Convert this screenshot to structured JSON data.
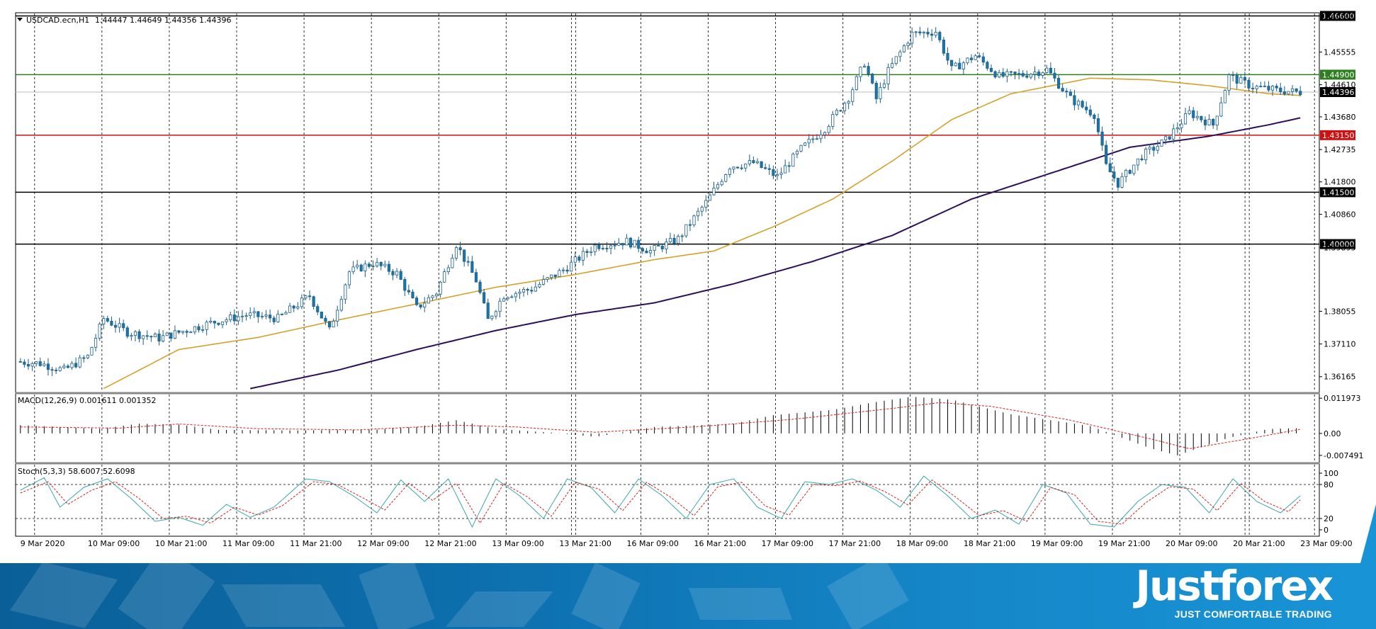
{
  "header": {
    "symbol": "USDCAD.ecn,H1",
    "ohlc": "1.44447 1.44649 1.44356 1.44396",
    "macd_title": "MACD(12,26,9) 0.001611 0.001352",
    "stoch_title": "Stoch(5,3,3) 58.6007 52.6098"
  },
  "brand": {
    "name": "Justforex",
    "tagline": "JUST COMFORTABLE TRADING"
  },
  "colors": {
    "up_candle": "#ffffff",
    "down_candle": "#1a75ab",
    "ma_fast": "#d4a22a",
    "ma_slow": "#2e0f5a",
    "hline_green": "#2e7d1f",
    "hline_red": "#d01010",
    "hline_black": "#000000",
    "macd_signal": "#d62020",
    "stoch_main": "#3aa6a6",
    "stoch_signal": "#d62020"
  },
  "chart_data": [
    {
      "type": "candlestick",
      "title": "USDCAD.ecn,H1",
      "ylim": [
        1.3575,
        1.4665
      ],
      "price_ticks": [
        "1.46600",
        "1.45555",
        "1.44610",
        "1.43680",
        "1.42735",
        "1.41800",
        "1.40860",
        "1.39895",
        "1.38055",
        "1.37110",
        "1.36165"
      ],
      "x_labels": [
        "9 Mar 2020",
        "10 Mar 09:00",
        "10 Mar 21:00",
        "11 Mar 09:00",
        "11 Mar 21:00",
        "12 Mar 09:00",
        "12 Mar 21:00",
        "13 Mar 09:00",
        "13 Mar 21:00",
        "16 Mar 09:00",
        "16 Mar 21:00",
        "17 Mar 09:00",
        "17 Mar 21:00",
        "18 Mar 09:00",
        "18 Mar 21:00",
        "19 Mar 09:00",
        "19 Mar 21:00",
        "20 Mar 09:00",
        "20 Mar 21:00",
        "23 Mar 09:00"
      ],
      "horizontal_levels": [
        {
          "value": 1.466,
          "label": "1.46600",
          "color": "black"
        },
        {
          "value": 1.449,
          "label": "1.44900",
          "color": "green"
        },
        {
          "value": 1.44396,
          "label": "1.44396",
          "color": "black"
        },
        {
          "value": 1.4315,
          "label": "1.43150",
          "color": "red"
        },
        {
          "value": 1.415,
          "label": "1.41500",
          "color": "black"
        },
        {
          "value": 1.4,
          "label": "1.40000",
          "color": "black"
        }
      ],
      "price_path": [
        [
          0,
          1.366
        ],
        [
          6,
          1.3655
        ],
        [
          12,
          1.3635
        ],
        [
          18,
          1.3675
        ],
        [
          22,
          1.3785
        ],
        [
          28,
          1.3745
        ],
        [
          36,
          1.3728
        ],
        [
          42,
          1.3748
        ],
        [
          50,
          1.3775
        ],
        [
          58,
          1.3795
        ],
        [
          66,
          1.3785
        ],
        [
          74,
          1.385
        ],
        [
          79,
          1.375
        ],
        [
          84,
          1.392
        ],
        [
          90,
          1.3945
        ],
        [
          96,
          1.3915
        ],
        [
          101,
          1.3815
        ],
        [
          106,
          1.386
        ],
        [
          111,
          1.4
        ],
        [
          116,
          1.3895
        ],
        [
          119,
          1.378
        ],
        [
          123,
          1.3852
        ],
        [
          130,
          1.387
        ],
        [
          138,
          1.3925
        ],
        [
          146,
          1.3995
        ],
        [
          154,
          1.4008
        ],
        [
          160,
          1.398
        ],
        [
          167,
          1.4015
        ],
        [
          174,
          1.412
        ],
        [
          180,
          1.4225
        ],
        [
          186,
          1.4235
        ],
        [
          192,
          1.4195
        ],
        [
          198,
          1.4275
        ],
        [
          204,
          1.4335
        ],
        [
          210,
          1.4425
        ],
        [
          214,
          1.4525
        ],
        [
          217,
          1.442
        ],
        [
          220,
          1.45
        ],
        [
          226,
          1.4608
        ],
        [
          232,
          1.4615
        ],
        [
          236,
          1.4505
        ],
        [
          242,
          1.4545
        ],
        [
          248,
          1.4485
        ],
        [
          254,
          1.449
        ],
        [
          260,
          1.4505
        ],
        [
          266,
          1.442
        ],
        [
          272,
          1.4375
        ],
        [
          275,
          1.4225
        ],
        [
          278,
          1.4175
        ],
        [
          284,
          1.4255
        ],
        [
          290,
          1.43
        ],
        [
          296,
          1.438
        ],
        [
          302,
          1.4345
        ],
        [
          306,
          1.4485
        ],
        [
          312,
          1.4455
        ],
        [
          318,
          1.4445
        ],
        [
          323,
          1.444
        ]
      ],
      "moving_averages": [
        {
          "points": [
            [
              21,
              1.3582
            ],
            [
              40,
              1.3695
            ],
            [
              60,
              1.373
            ],
            [
              80,
              1.378
            ],
            [
              100,
              1.3827
            ],
            [
              120,
              1.3875
            ],
            [
              140,
              1.3912
            ],
            [
              160,
              1.3955
            ],
            [
              175,
              1.398
            ],
            [
              190,
              1.405
            ],
            [
              205,
              1.413
            ],
            [
              220,
              1.424
            ],
            [
              235,
              1.436
            ],
            [
              250,
              1.4435
            ],
            [
              270,
              1.448
            ],
            [
              285,
              1.4475
            ],
            [
              300,
              1.4458
            ],
            [
              315,
              1.4435
            ],
            [
              323,
              1.443
            ]
          ]
        },
        {
          "points": [
            [
              58,
              1.3582
            ],
            [
              80,
              1.3635
            ],
            [
              100,
              1.3695
            ],
            [
              120,
              1.375
            ],
            [
              140,
              1.3796
            ],
            [
              160,
              1.383
            ],
            [
              180,
              1.3885
            ],
            [
              200,
              1.395
            ],
            [
              220,
              1.4025
            ],
            [
              240,
              1.413
            ],
            [
              260,
              1.4205
            ],
            [
              280,
              1.428
            ],
            [
              300,
              1.4312
            ],
            [
              315,
              1.4345
            ],
            [
              323,
              1.4365
            ]
          ]
        }
      ]
    },
    {
      "type": "bar",
      "title": "MACD(12,26,9) 0.001611 0.001352",
      "ylim": [
        -0.0092,
        0.0125
      ],
      "y_ticks": [
        "0.011973",
        "0.00",
        "-0.007491"
      ],
      "histogram_path": [
        [
          0,
          0.0028
        ],
        [
          20,
          0.0016
        ],
        [
          30,
          0.0033
        ],
        [
          40,
          0.003
        ],
        [
          50,
          0.0012
        ],
        [
          70,
          0.001
        ],
        [
          90,
          0.0013
        ],
        [
          100,
          0.0022
        ],
        [
          110,
          0.0045
        ],
        [
          120,
          0.0015
        ],
        [
          135,
          0.0002
        ],
        [
          145,
          -0.0012
        ],
        [
          160,
          0.0022
        ],
        [
          180,
          0.0033
        ],
        [
          190,
          0.0062
        ],
        [
          205,
          0.008
        ],
        [
          215,
          0.0105
        ],
        [
          225,
          0.0125
        ],
        [
          235,
          0.0115
        ],
        [
          250,
          0.0065
        ],
        [
          270,
          0.0025
        ],
        [
          285,
          -0.005
        ],
        [
          292,
          -0.0075
        ],
        [
          305,
          -0.0015
        ],
        [
          315,
          0.0015
        ],
        [
          323,
          0.0018
        ]
      ],
      "signal_path": [
        [
          0,
          0.0022
        ],
        [
          25,
          0.0018
        ],
        [
          40,
          0.0032
        ],
        [
          60,
          0.0016
        ],
        [
          85,
          0.0012
        ],
        [
          110,
          0.0028
        ],
        [
          125,
          0.0022
        ],
        [
          145,
          0.0004
        ],
        [
          170,
          0.0022
        ],
        [
          195,
          0.0048
        ],
        [
          220,
          0.0085
        ],
        [
          232,
          0.0105
        ],
        [
          245,
          0.0092
        ],
        [
          265,
          0.0045
        ],
        [
          285,
          -0.0018
        ],
        [
          295,
          -0.0052
        ],
        [
          310,
          -0.0018
        ],
        [
          323,
          0.0014
        ]
      ]
    },
    {
      "type": "line",
      "title": "Stoch(5,3,3) 58.6007 52.6098",
      "ylim": [
        0,
        100
      ],
      "y_ticks": [
        "100",
        "80",
        "20",
        "0"
      ],
      "levels": [
        80,
        20
      ],
      "main_path": [
        [
          0,
          70
        ],
        [
          6,
          92
        ],
        [
          10,
          40
        ],
        [
          16,
          75
        ],
        [
          22,
          90
        ],
        [
          28,
          55
        ],
        [
          34,
          15
        ],
        [
          40,
          22
        ],
        [
          46,
          8
        ],
        [
          52,
          45
        ],
        [
          58,
          22
        ],
        [
          64,
          40
        ],
        [
          72,
          90
        ],
        [
          78,
          85
        ],
        [
          84,
          60
        ],
        [
          90,
          30
        ],
        [
          96,
          88
        ],
        [
          102,
          50
        ],
        [
          108,
          90
        ],
        [
          114,
          5
        ],
        [
          120,
          90
        ],
        [
          126,
          60
        ],
        [
          132,
          20
        ],
        [
          138,
          90
        ],
        [
          144,
          75
        ],
        [
          150,
          30
        ],
        [
          156,
          90
        ],
        [
          162,
          60
        ],
        [
          168,
          20
        ],
        [
          174,
          80
        ],
        [
          180,
          90
        ],
        [
          186,
          40
        ],
        [
          192,
          20
        ],
        [
          198,
          85
        ],
        [
          204,
          80
        ],
        [
          210,
          90
        ],
        [
          216,
          70
        ],
        [
          222,
          40
        ],
        [
          228,
          95
        ],
        [
          234,
          60
        ],
        [
          240,
          20
        ],
        [
          246,
          35
        ],
        [
          252,
          10
        ],
        [
          258,
          80
        ],
        [
          264,
          65
        ],
        [
          270,
          10
        ],
        [
          276,
          5
        ],
        [
          282,
          50
        ],
        [
          288,
          80
        ],
        [
          294,
          75
        ],
        [
          300,
          30
        ],
        [
          306,
          90
        ],
        [
          312,
          50
        ],
        [
          318,
          30
        ],
        [
          323,
          60
        ]
      ],
      "signal_path": [
        [
          0,
          65
        ],
        [
          7,
          85
        ],
        [
          12,
          45
        ],
        [
          18,
          70
        ],
        [
          24,
          85
        ],
        [
          30,
          55
        ],
        [
          36,
          20
        ],
        [
          42,
          24
        ],
        [
          48,
          12
        ],
        [
          54,
          40
        ],
        [
          60,
          26
        ],
        [
          66,
          42
        ],
        [
          74,
          85
        ],
        [
          80,
          80
        ],
        [
          86,
          58
        ],
        [
          92,
          35
        ],
        [
          98,
          82
        ],
        [
          104,
          52
        ],
        [
          110,
          82
        ],
        [
          116,
          12
        ],
        [
          122,
          82
        ],
        [
          128,
          58
        ],
        [
          134,
          24
        ],
        [
          140,
          84
        ],
        [
          146,
          72
        ],
        [
          152,
          34
        ],
        [
          158,
          84
        ],
        [
          164,
          58
        ],
        [
          170,
          25
        ],
        [
          176,
          76
        ],
        [
          182,
          84
        ],
        [
          188,
          42
        ],
        [
          194,
          26
        ],
        [
          200,
          80
        ],
        [
          206,
          78
        ],
        [
          212,
          86
        ],
        [
          218,
          68
        ],
        [
          224,
          44
        ],
        [
          230,
          88
        ],
        [
          236,
          58
        ],
        [
          242,
          25
        ],
        [
          248,
          34
        ],
        [
          254,
          15
        ],
        [
          260,
          75
        ],
        [
          266,
          62
        ],
        [
          272,
          15
        ],
        [
          278,
          10
        ],
        [
          284,
          48
        ],
        [
          290,
          76
        ],
        [
          296,
          72
        ],
        [
          302,
          34
        ],
        [
          308,
          82
        ],
        [
          314,
          50
        ],
        [
          320,
          32
        ],
        [
          323,
          53
        ]
      ]
    }
  ]
}
